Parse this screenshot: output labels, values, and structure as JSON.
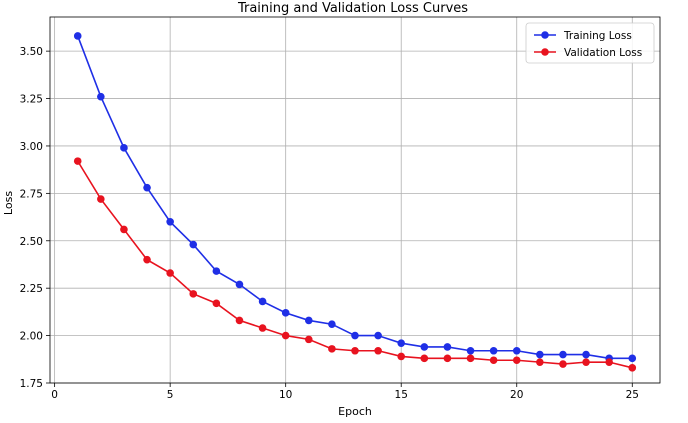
{
  "chart_data": {
    "type": "line",
    "title": "Training and Validation Loss Curves",
    "xlabel": "Epoch",
    "ylabel": "Loss",
    "xlim": [
      -0.2,
      26.2
    ],
    "ylim": [
      1.75,
      3.68
    ],
    "x_ticks": [
      0,
      5,
      10,
      15,
      20,
      25
    ],
    "y_ticks": [
      1.75,
      2.0,
      2.25,
      2.5,
      2.75,
      3.0,
      3.25,
      3.5
    ],
    "x_tick_labels": [
      "0",
      "5",
      "10",
      "15",
      "20",
      "25"
    ],
    "y_tick_labels": [
      "1.75",
      "2.00",
      "2.25",
      "2.50",
      "2.75",
      "3.00",
      "3.25",
      "3.50"
    ],
    "grid": true,
    "legend_position": "top-right",
    "x": [
      1,
      2,
      3,
      4,
      5,
      6,
      7,
      8,
      9,
      10,
      11,
      12,
      13,
      14,
      15,
      16,
      17,
      18,
      19,
      20,
      21,
      22,
      23,
      24,
      25
    ],
    "series": [
      {
        "name": "Training Loss",
        "color": "#1f2fe6",
        "values": [
          3.58,
          3.26,
          2.99,
          2.78,
          2.6,
          2.48,
          2.34,
          2.27,
          2.18,
          2.12,
          2.08,
          2.06,
          2.0,
          2.0,
          1.96,
          1.94,
          1.94,
          1.92,
          1.92,
          1.92,
          1.9,
          1.9,
          1.9,
          1.88,
          1.88
        ]
      },
      {
        "name": "Validation Loss",
        "color": "#e8131f",
        "values": [
          2.92,
          2.72,
          2.56,
          2.4,
          2.33,
          2.22,
          2.17,
          2.08,
          2.04,
          2.0,
          1.98,
          1.93,
          1.92,
          1.92,
          1.89,
          1.88,
          1.88,
          1.88,
          1.87,
          1.87,
          1.86,
          1.85,
          1.86,
          1.86,
          1.83
        ]
      }
    ]
  }
}
